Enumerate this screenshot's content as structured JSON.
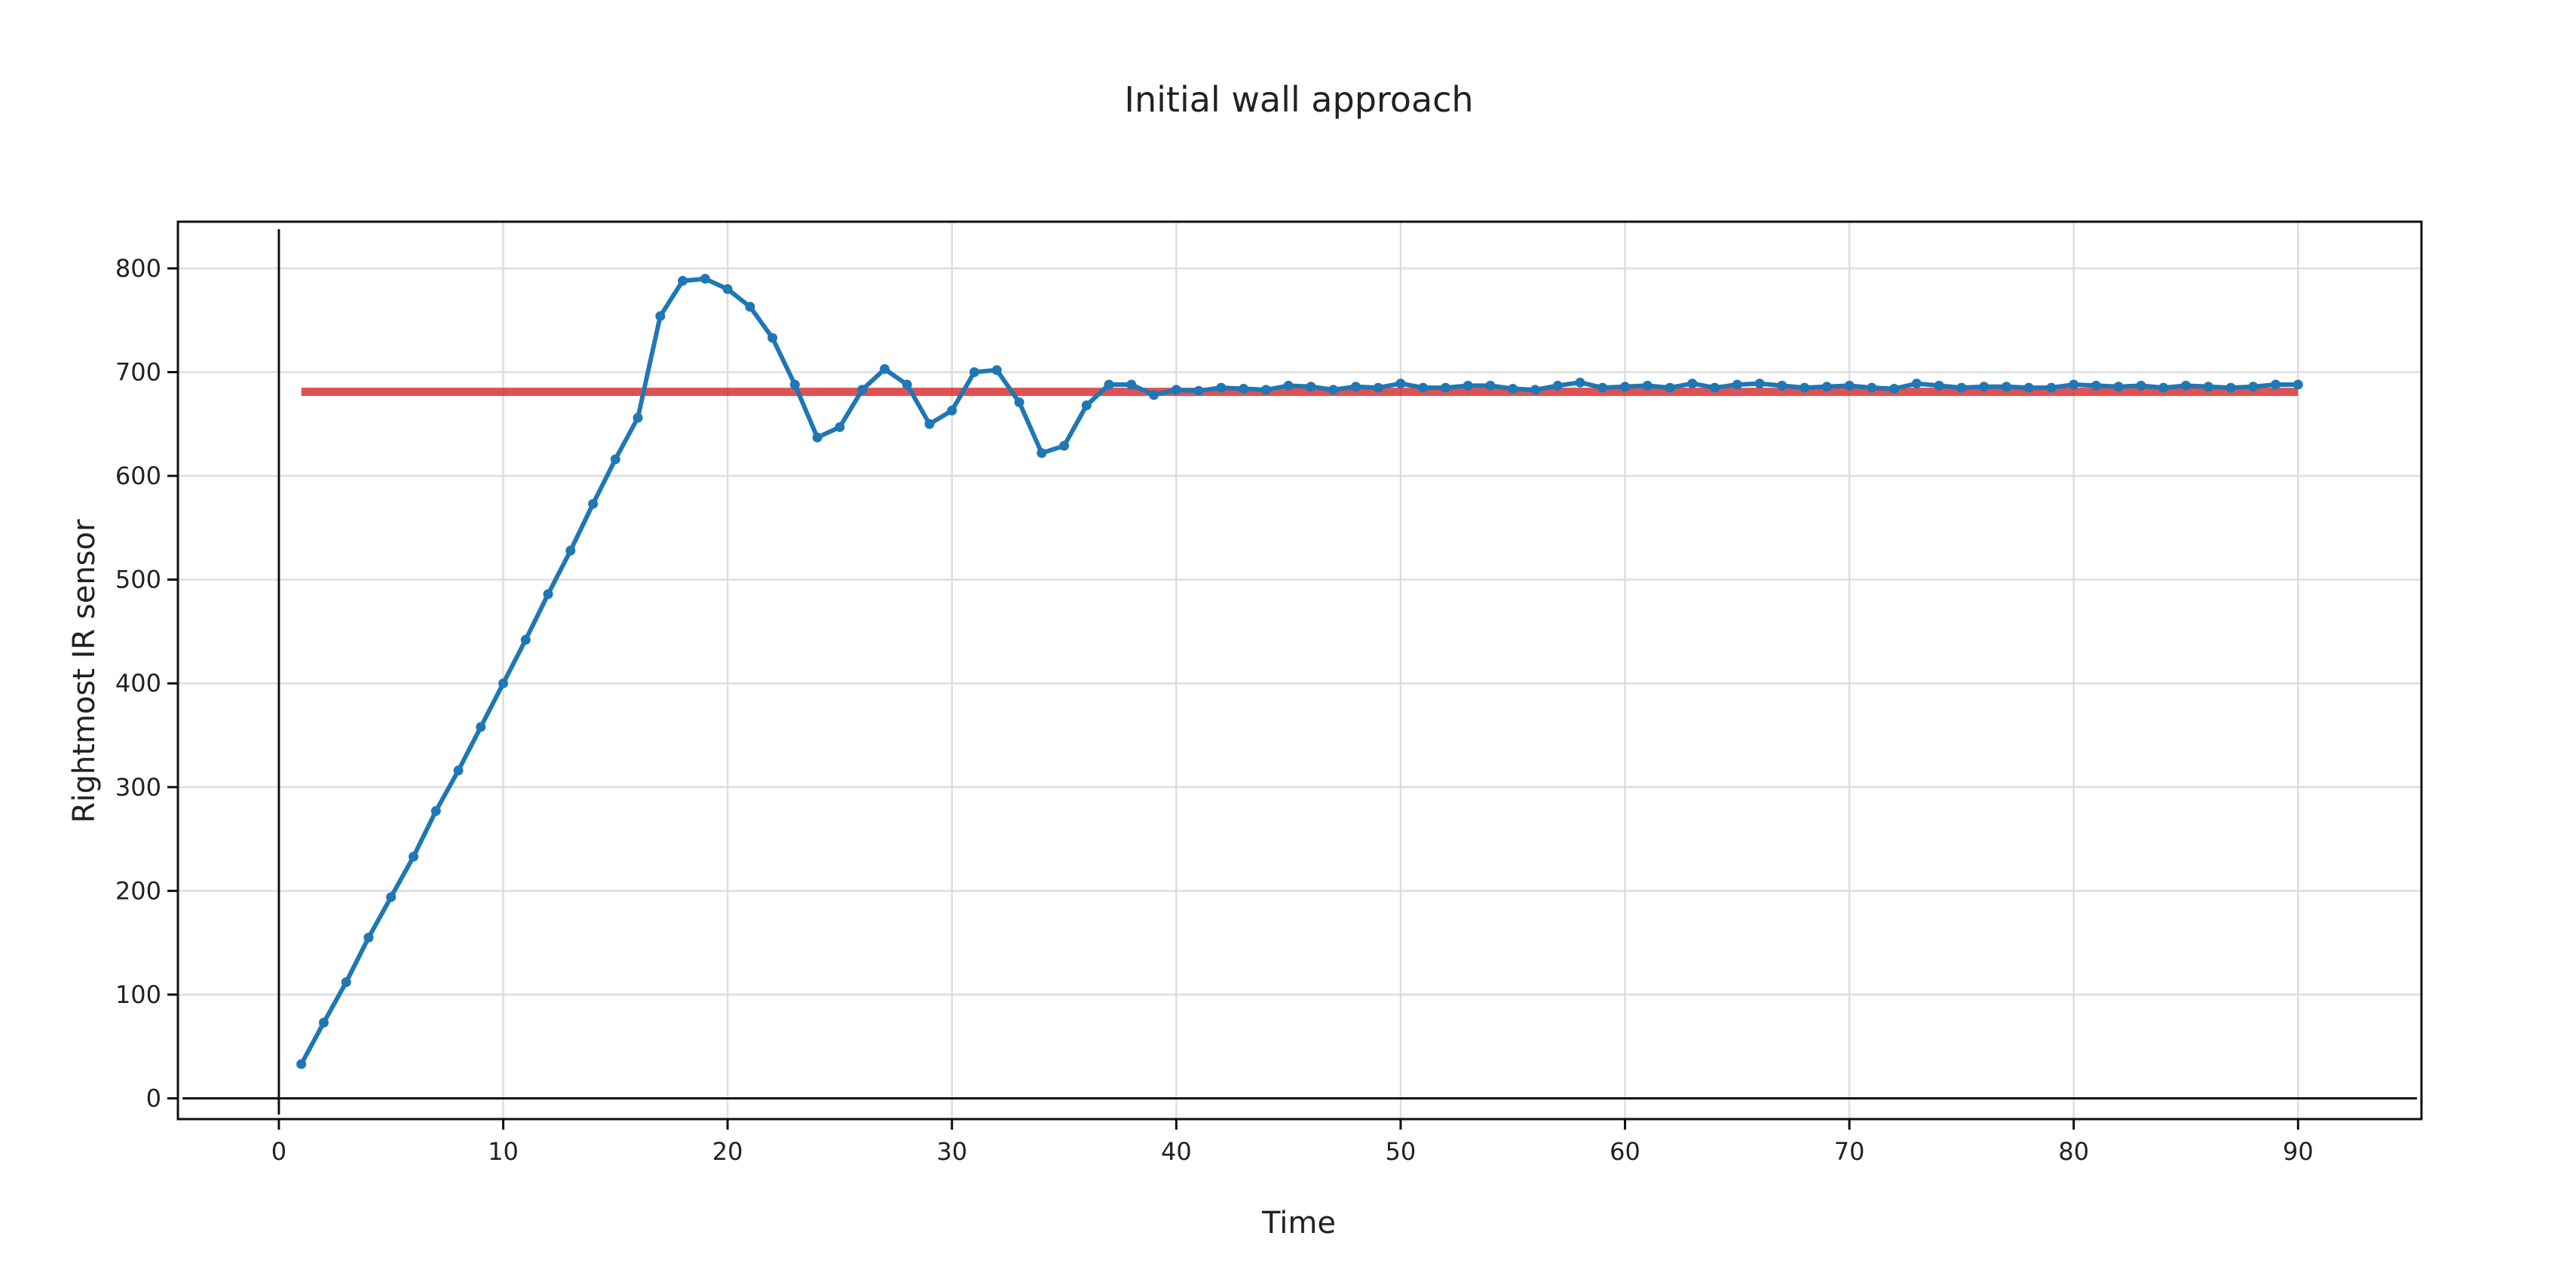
{
  "chart_data": {
    "type": "line",
    "title": "Initial  wall approach",
    "xlabel": "Time",
    "ylabel": "Rightmost  IR sensor",
    "xlim": [
      -4.5,
      95.5
    ],
    "ylim": [
      -20,
      845
    ],
    "x_ticks": [
      0,
      10,
      20,
      30,
      40,
      50,
      60,
      70,
      80,
      90
    ],
    "y_ticks": [
      0,
      100,
      200,
      300,
      400,
      500,
      600,
      700,
      800
    ],
    "grid": true,
    "legend": "none",
    "series": [
      {
        "role": "sensor",
        "color": "#1f77b4",
        "markers": true,
        "x": [
          1,
          2,
          3,
          4,
          5,
          6,
          7,
          8,
          9,
          10,
          11,
          12,
          13,
          14,
          15,
          16,
          17,
          18,
          19,
          20,
          21,
          22,
          23,
          24,
          25,
          26,
          27,
          28,
          29,
          30,
          31,
          32,
          33,
          34,
          35,
          36,
          37,
          38,
          39,
          40,
          41,
          42,
          43,
          44,
          45,
          46,
          47,
          48,
          49,
          50,
          51,
          52,
          53,
          54,
          55,
          56,
          57,
          58,
          59,
          60,
          61,
          62,
          63,
          64,
          65,
          66,
          67,
          68,
          69,
          70,
          71,
          72,
          73,
          74,
          75,
          76,
          77,
          78,
          79,
          80,
          81,
          82,
          83,
          84,
          85,
          86,
          87,
          88,
          89,
          90
        ],
        "y": [
          33,
          73,
          112,
          155,
          194,
          233,
          277,
          316,
          358,
          400,
          442,
          486,
          528,
          573,
          616,
          656,
          754,
          788,
          790,
          780,
          763,
          733,
          688,
          637,
          647,
          683,
          703,
          688,
          650,
          663,
          700,
          702,
          671,
          622,
          629,
          668,
          688,
          688,
          678,
          683,
          682,
          685,
          684,
          683,
          687,
          686,
          683,
          686,
          685,
          689,
          685,
          685,
          687,
          687,
          684,
          683,
          687,
          690,
          685,
          686,
          687,
          685,
          689,
          685,
          688,
          689,
          687,
          685,
          686,
          687,
          685,
          684,
          689,
          687,
          685,
          686,
          686,
          685,
          685,
          688,
          687,
          686,
          687,
          685,
          687,
          686,
          685,
          686,
          688,
          688
        ]
      },
      {
        "role": "target",
        "color": "#d62728",
        "markers": false,
        "x": [
          1,
          90
        ],
        "y": [
          681,
          681
        ]
      }
    ]
  }
}
